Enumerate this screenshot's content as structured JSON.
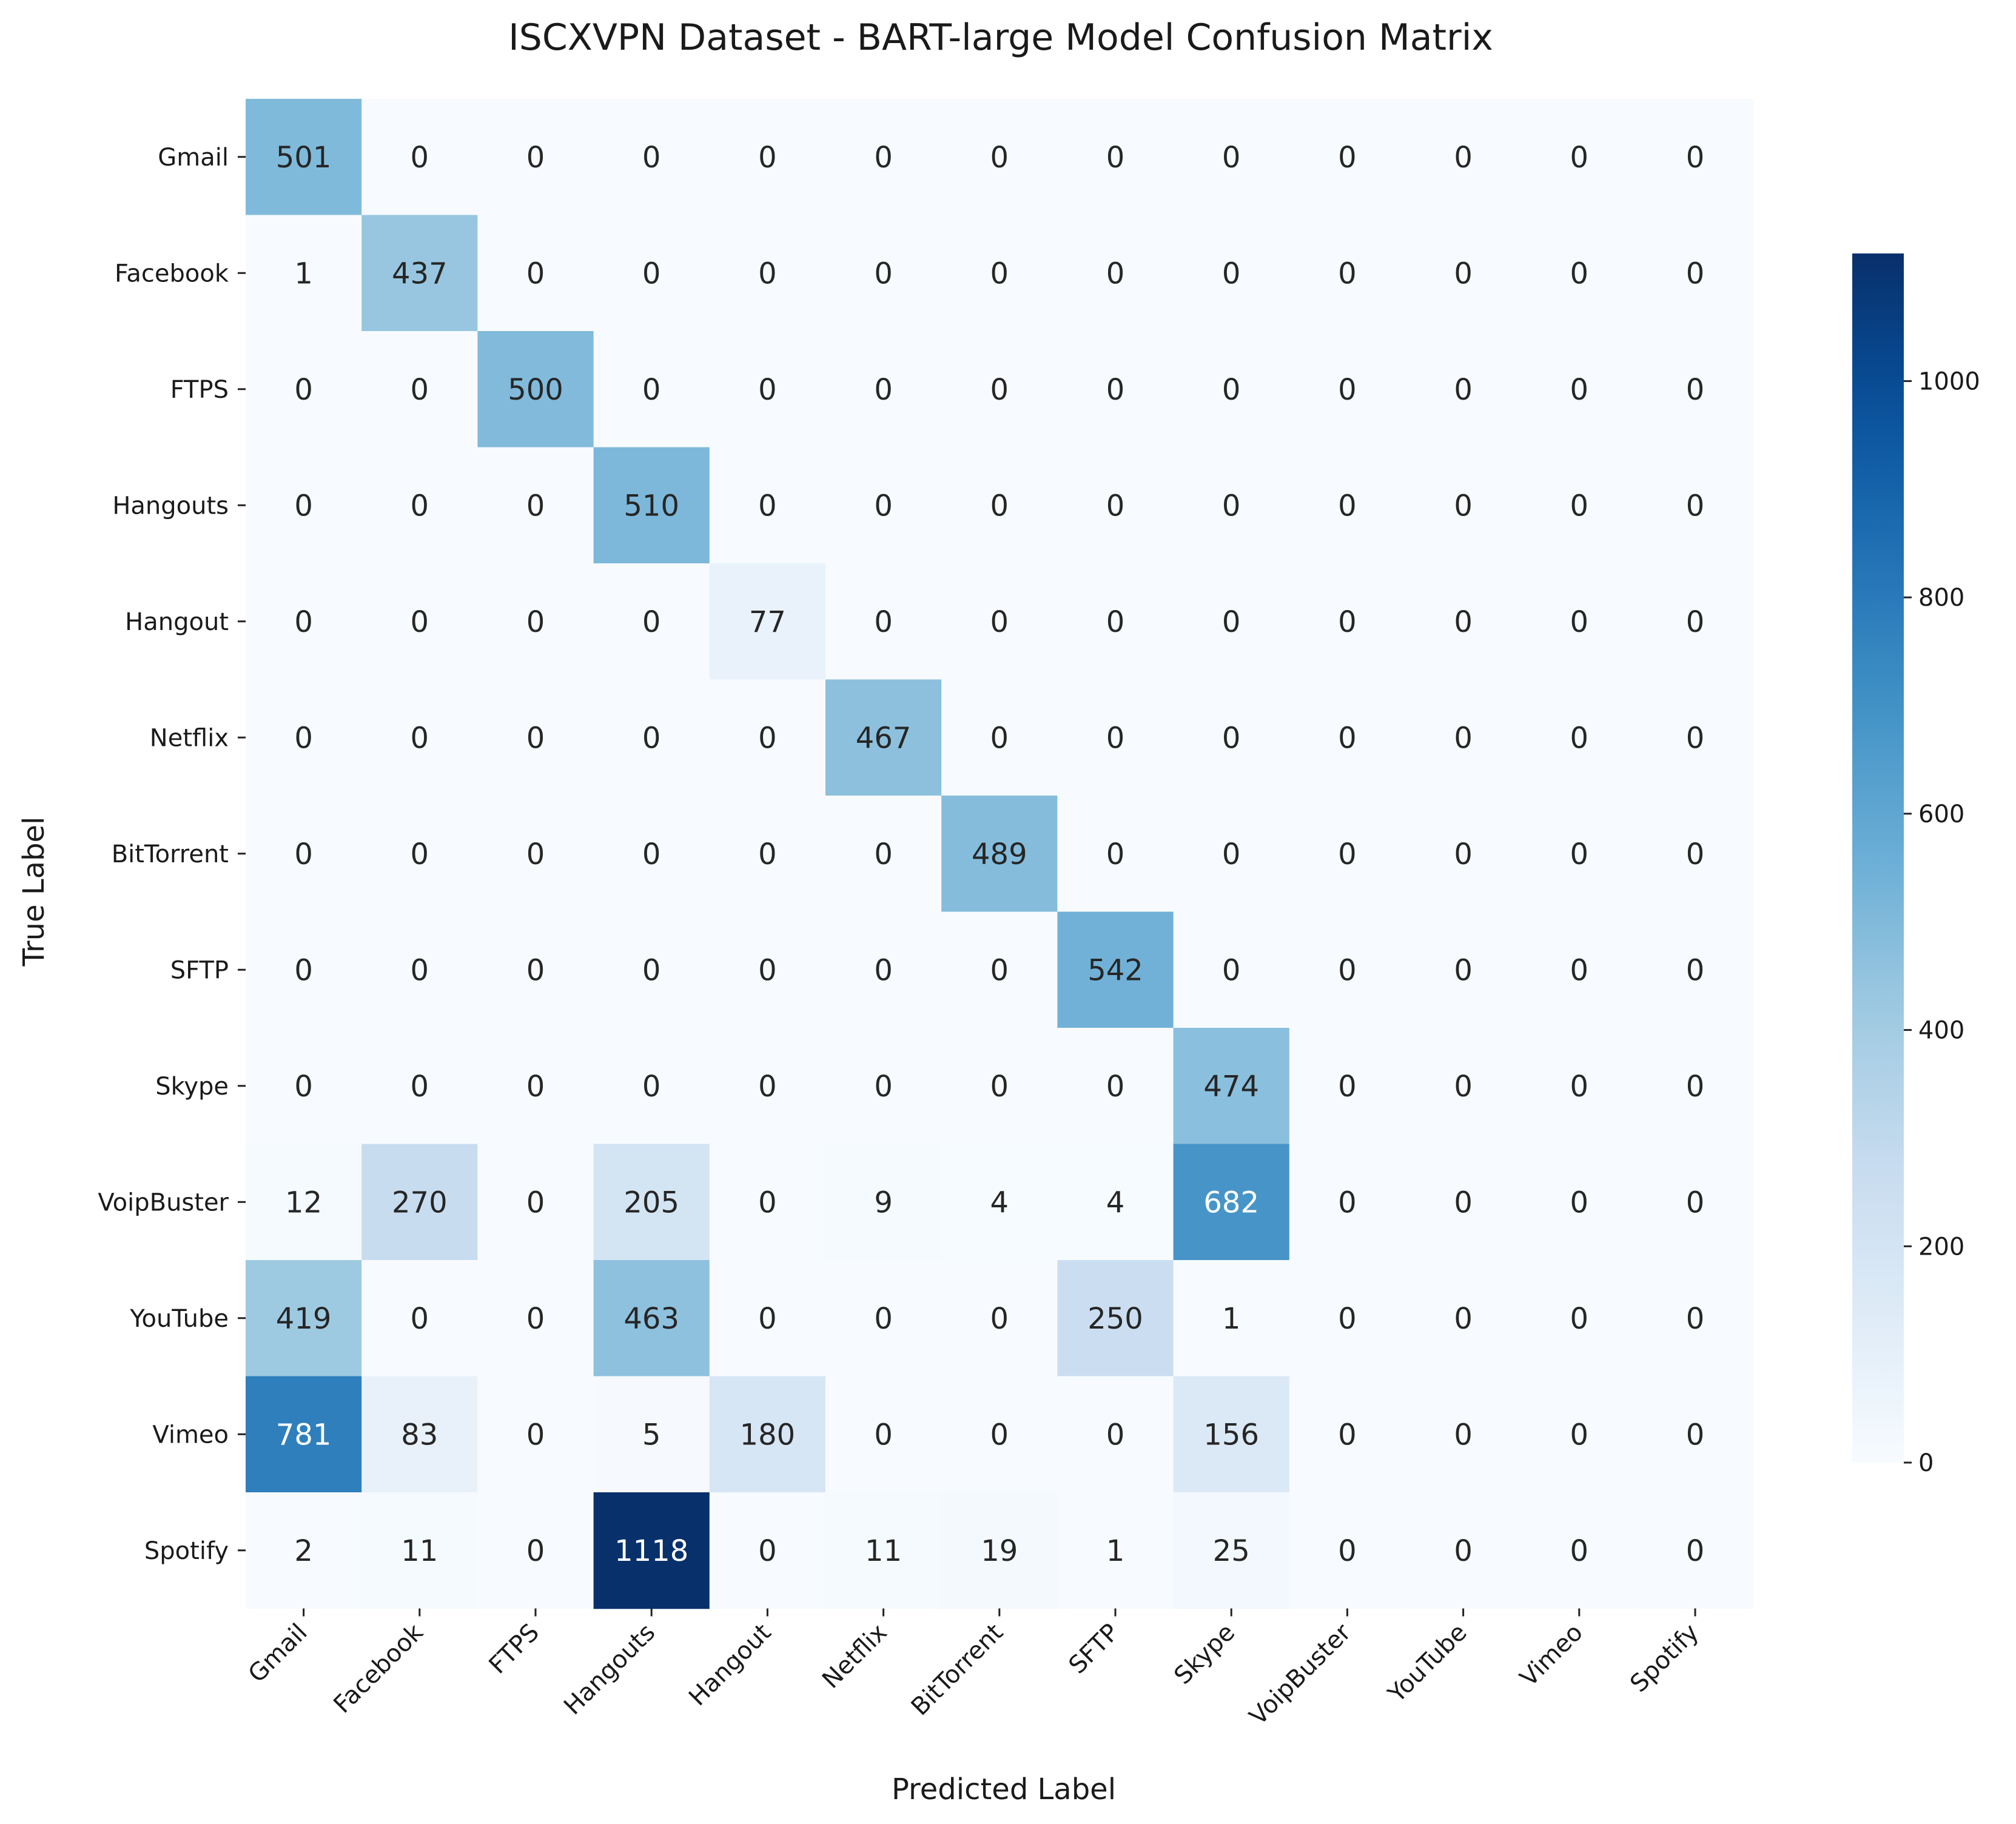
{
  "chart_data": {
    "type": "heatmap",
    "title": "ISCXVPN Dataset - BART-large Model Confusion Matrix",
    "xlabel": "Predicted Label",
    "ylabel": "True Label",
    "row_labels": [
      "Gmail",
      "Facebook",
      "FTPS",
      "Hangouts",
      "Hangout",
      "Netflix",
      "BitTorrent",
      "SFTP",
      "Skype",
      "VoipBuster",
      "YouTube",
      "Vimeo",
      "Spotify"
    ],
    "col_labels": [
      "Gmail",
      "Facebook",
      "FTPS",
      "Hangouts",
      "Hangout",
      "Netflix",
      "BitTorrent",
      "SFTP",
      "Skype",
      "VoipBuster",
      "YouTube",
      "Vimeo",
      "Spotify"
    ],
    "values": [
      [
        501,
        0,
        0,
        0,
        0,
        0,
        0,
        0,
        0,
        0,
        0,
        0,
        0
      ],
      [
        1,
        437,
        0,
        0,
        0,
        0,
        0,
        0,
        0,
        0,
        0,
        0,
        0
      ],
      [
        0,
        0,
        500,
        0,
        0,
        0,
        0,
        0,
        0,
        0,
        0,
        0,
        0
      ],
      [
        0,
        0,
        0,
        510,
        0,
        0,
        0,
        0,
        0,
        0,
        0,
        0,
        0
      ],
      [
        0,
        0,
        0,
        0,
        77,
        0,
        0,
        0,
        0,
        0,
        0,
        0,
        0
      ],
      [
        0,
        0,
        0,
        0,
        0,
        467,
        0,
        0,
        0,
        0,
        0,
        0,
        0
      ],
      [
        0,
        0,
        0,
        0,
        0,
        0,
        489,
        0,
        0,
        0,
        0,
        0,
        0
      ],
      [
        0,
        0,
        0,
        0,
        0,
        0,
        0,
        542,
        0,
        0,
        0,
        0,
        0
      ],
      [
        0,
        0,
        0,
        0,
        0,
        0,
        0,
        0,
        474,
        0,
        0,
        0,
        0
      ],
      [
        12,
        270,
        0,
        205,
        0,
        9,
        4,
        4,
        682,
        0,
        0,
        0,
        0
      ],
      [
        419,
        0,
        0,
        463,
        0,
        0,
        0,
        250,
        1,
        0,
        0,
        0,
        0
      ],
      [
        781,
        83,
        0,
        5,
        180,
        0,
        0,
        0,
        156,
        0,
        0,
        0,
        0
      ],
      [
        2,
        11,
        0,
        1118,
        0,
        11,
        19,
        1,
        25,
        0,
        0,
        0,
        0
      ]
    ],
    "colormap": "Blues",
    "color_range": [
      0,
      1118
    ],
    "colorbar_ticks": [
      0,
      200,
      400,
      600,
      800,
      1000
    ],
    "grid": false
  }
}
